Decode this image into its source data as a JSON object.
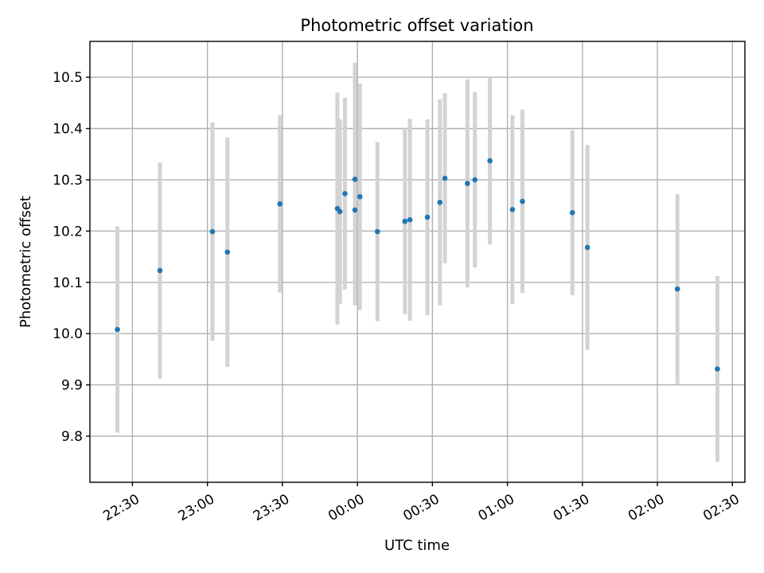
{
  "chart_data": {
    "type": "scatter",
    "title": "Photometric offset variation",
    "xlabel": "UTC time",
    "ylabel": "Photometric offset",
    "x_axis_type": "time",
    "x_start_date_reference": "day 1 starts at 00:00 (times before midnight belong to previous day)",
    "xlim": [
      "22:13",
      "02:35"
    ],
    "ylim": [
      9.71,
      10.57
    ],
    "x_ticks": [
      "22:30",
      "23:00",
      "23:30",
      "00:00",
      "00:30",
      "01:00",
      "01:30",
      "02:00",
      "02:30"
    ],
    "y_ticks": [
      9.8,
      9.9,
      10.0,
      10.1,
      10.2,
      10.3,
      10.4,
      10.5
    ],
    "grid": true,
    "colors": {
      "points": "#1f77b4",
      "errorbars": "#d3d3d3"
    },
    "series": [
      {
        "points": [
          {
            "x": "22:24",
            "y": 10.008,
            "err": 0.201
          },
          {
            "x": "22:41",
            "y": 10.123,
            "err": 0.211
          },
          {
            "x": "23:02",
            "y": 10.199,
            "err": 0.213
          },
          {
            "x": "23:08",
            "y": 10.159,
            "err": 0.224
          },
          {
            "x": "23:29",
            "y": 10.253,
            "err": 0.173
          },
          {
            "x": "23:52",
            "y": 10.244,
            "err": 0.226
          },
          {
            "x": "23:53",
            "y": 10.238,
            "err": 0.18
          },
          {
            "x": "23:55",
            "y": 10.273,
            "err": 0.187
          },
          {
            "x": "23:59",
            "y": 10.301,
            "err": 0.227
          },
          {
            "x": "23:59",
            "y": 10.241,
            "err": 0.186
          },
          {
            "x": "00:01",
            "y": 10.267,
            "err": 0.221
          },
          {
            "x": "00:08",
            "y": 10.199,
            "err": 0.175
          },
          {
            "x": "00:19",
            "y": 10.219,
            "err": 0.181
          },
          {
            "x": "00:21",
            "y": 10.222,
            "err": 0.197
          },
          {
            "x": "00:28",
            "y": 10.227,
            "err": 0.191
          },
          {
            "x": "00:33",
            "y": 10.256,
            "err": 0.201
          },
          {
            "x": "00:35",
            "y": 10.303,
            "err": 0.166
          },
          {
            "x": "00:44",
            "y": 10.293,
            "err": 0.203
          },
          {
            "x": "00:47",
            "y": 10.3,
            "err": 0.171
          },
          {
            "x": "00:53",
            "y": 10.337,
            "err": 0.163
          },
          {
            "x": "01:02",
            "y": 10.242,
            "err": 0.184
          },
          {
            "x": "01:06",
            "y": 10.258,
            "err": 0.179
          },
          {
            "x": "01:26",
            "y": 10.236,
            "err": 0.161
          },
          {
            "x": "01:32",
            "y": 10.168,
            "err": 0.2
          },
          {
            "x": "02:08",
            "y": 10.087,
            "err": 0.185
          },
          {
            "x": "02:24",
            "y": 9.931,
            "err": 0.181
          }
        ]
      }
    ]
  }
}
